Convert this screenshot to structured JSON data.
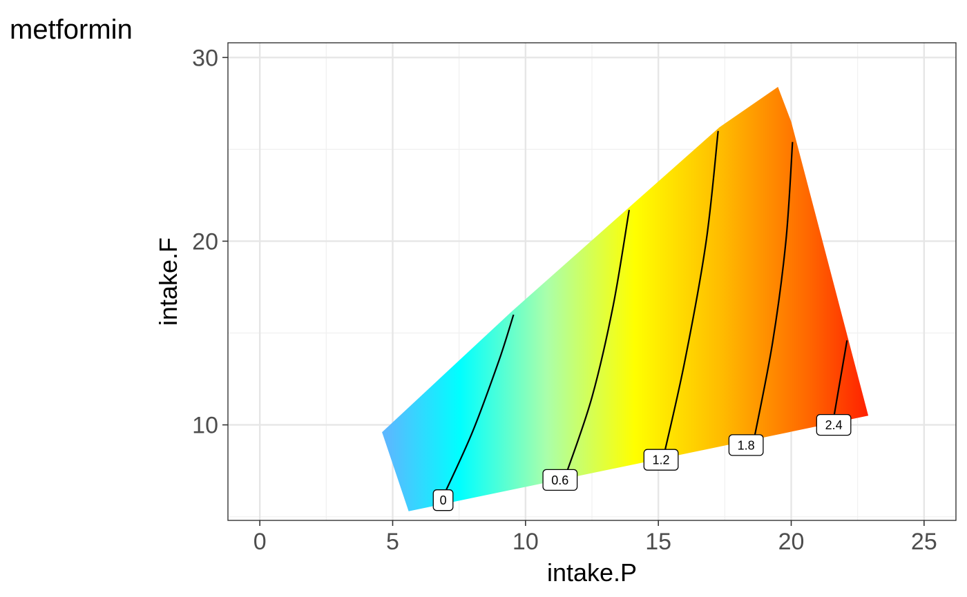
{
  "chart_data": {
    "type": "contour",
    "title": "metformin",
    "xlabel": "intake.P",
    "ylabel": "intake.F",
    "xlim": [
      -1.2,
      26.2
    ],
    "ylim": [
      4.8,
      30.8
    ],
    "x_ticks": [
      0,
      5,
      10,
      15,
      20,
      25
    ],
    "y_ticks": [
      10,
      20,
      30
    ],
    "x_minor": [
      2.5,
      7.5,
      12.5,
      17.5,
      22.5
    ],
    "y_minor": [
      5,
      15,
      25
    ],
    "grid": true,
    "legend": "none",
    "region": [
      {
        "x": 5.6,
        "y": 5.3
      },
      {
        "x": 22.9,
        "y": 10.5
      },
      {
        "x": 20.0,
        "y": 26.5
      },
      {
        "x": 19.5,
        "y": 28.4
      },
      {
        "x": 17.3,
        "y": 26.2
      },
      {
        "x": 9.5,
        "y": 16.2
      },
      {
        "x": 4.6,
        "y": 9.6
      }
    ],
    "color_scale": [
      {
        "value": -0.5,
        "color": "#5bb8ff"
      },
      {
        "value": 0.0,
        "color": "#00ffff"
      },
      {
        "value": 0.6,
        "color": "#aaffaa"
      },
      {
        "value": 1.2,
        "color": "#ffff00"
      },
      {
        "value": 1.8,
        "color": "#ffbb00"
      },
      {
        "value": 2.4,
        "color": "#ff6600"
      },
      {
        "value": 2.8,
        "color": "#ff2200"
      }
    ],
    "contours": [
      {
        "level": "0",
        "points": [
          [
            6.9,
            6.1
          ],
          [
            8.0,
            9.6
          ],
          [
            9.0,
            13.5
          ],
          [
            9.55,
            16.0
          ]
        ]
      },
      {
        "level": "0.6",
        "points": [
          [
            11.5,
            7.2
          ],
          [
            12.5,
            11.5
          ],
          [
            13.3,
            16.5
          ],
          [
            13.9,
            21.7
          ]
        ]
      },
      {
        "level": "1.2",
        "points": [
          [
            15.2,
            8.3
          ],
          [
            16.0,
            13.5
          ],
          [
            16.8,
            20.0
          ],
          [
            17.25,
            26.0
          ]
        ]
      },
      {
        "level": "1.8",
        "points": [
          [
            18.6,
            9.2
          ],
          [
            19.3,
            14.5
          ],
          [
            19.8,
            20.0
          ],
          [
            20.05,
            25.4
          ]
        ]
      },
      {
        "level": "2.4",
        "points": [
          [
            21.6,
            10.4
          ],
          [
            21.85,
            12.5
          ],
          [
            22.1,
            14.6
          ]
        ]
      }
    ],
    "contour_labels": [
      {
        "text": "0",
        "x": 6.9,
        "y": 5.9
      },
      {
        "text": "0.6",
        "x": 11.3,
        "y": 7.0
      },
      {
        "text": "1.2",
        "x": 15.1,
        "y": 8.1
      },
      {
        "text": "1.8",
        "x": 18.3,
        "y": 8.9
      },
      {
        "text": "2.4",
        "x": 21.6,
        "y": 10.0
      }
    ]
  }
}
